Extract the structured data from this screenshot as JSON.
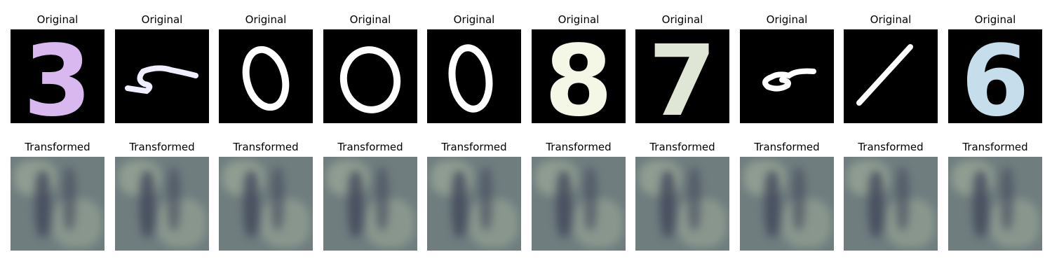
{
  "labels": {
    "original": "Original",
    "transformed": "Transformed"
  },
  "samples": [
    {
      "digit": "3",
      "color": "#d9b8f0",
      "style": "pixel"
    },
    {
      "digit": "5",
      "color": "#eeeeff",
      "style": "flat"
    },
    {
      "digit": "0",
      "color": "#ffffff",
      "style": "ring"
    },
    {
      "digit": "0",
      "color": "#ffffff",
      "style": "ring"
    },
    {
      "digit": "0",
      "color": "#ffffff",
      "style": "ring"
    },
    {
      "digit": "8",
      "color": "#f4f6e6",
      "style": "pixel"
    },
    {
      "digit": "7",
      "color": "#dfe6d6",
      "style": "pixel"
    },
    {
      "digit": "5",
      "color": "#ffffff",
      "style": "flat"
    },
    {
      "digit": "1",
      "color": "#ffffff",
      "style": "slash"
    },
    {
      "digit": "6",
      "color": "#c6deeb",
      "style": "pixel"
    }
  ],
  "palette": {
    "transformed_base": "#6f7d7f",
    "transformed_dark": "#3d4257",
    "transformed_light": "#a9b6a0"
  }
}
